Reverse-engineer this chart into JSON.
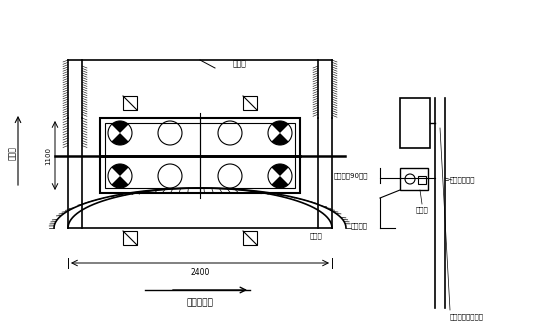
{
  "bg_color": "#ffffff",
  "line_color": "#000000",
  "gray_color": "#aaaaaa",
  "fig_width": 5.6,
  "fig_height": 3.28,
  "dpi": 100,
  "labels": {
    "title_top": "椅频岛",
    "water_dir": "水流向",
    "dim_2400": "2400",
    "south_dir": "恩泽（南）",
    "dim_1100": "1100",
    "collect_water": "收水坡",
    "sand_label": "砂、石、水冲料场",
    "pump_label": "君泥泵（90型）",
    "pump_send": "泥浆运输使途",
    "pipe_label": "君泥管道",
    "weigh_label": "计量筒"
  }
}
